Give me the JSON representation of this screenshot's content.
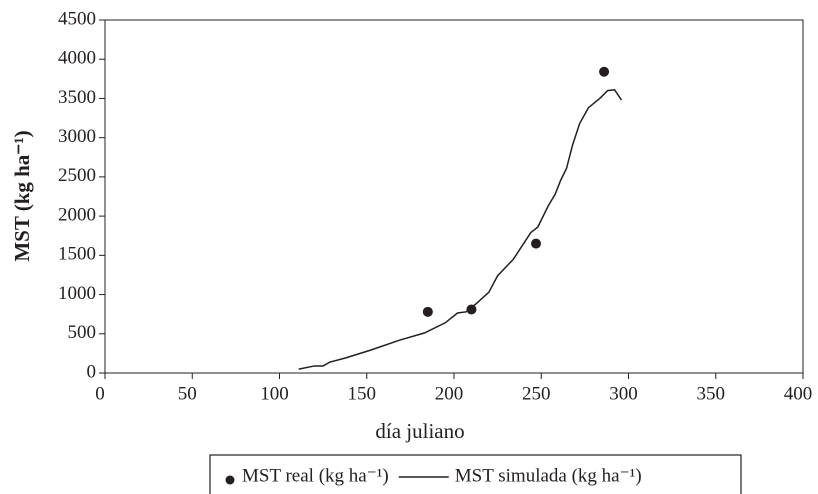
{
  "chart_data": {
    "type": "line",
    "x_label": "día juliano",
    "y_label": "MST (kg ha⁻¹)",
    "xlim": [
      0,
      400
    ],
    "xticks": [
      0,
      50,
      100,
      150,
      200,
      250,
      300,
      350,
      400
    ],
    "ylim": [
      0,
      4500
    ],
    "yticks": [
      0,
      500,
      1000,
      1500,
      2000,
      2500,
      3000,
      3500,
      4000,
      4500
    ],
    "legend": "bottom",
    "series": [
      {
        "name": "MST real (kg ha⁻¹)",
        "type": "scatter",
        "color": "#231f20",
        "x": [
          185,
          210,
          247,
          286
        ],
        "values": [
          780,
          810,
          1650,
          3840
        ]
      },
      {
        "name": "MST simulada (kg ha⁻¹)",
        "type": "line",
        "color": "#231f20",
        "x": [
          111,
          120,
          125,
          129,
          137.5,
          152,
          169,
          183,
          195,
          202,
          207,
          212,
          220,
          225,
          234,
          239,
          244,
          248,
          254,
          258,
          261,
          264.5,
          268,
          272,
          277,
          284,
          288,
          292,
          296
        ],
        "values": [
          50,
          90,
          90,
          140,
          190,
          290,
          420,
          510,
          640,
          765,
          780,
          870,
          1030,
          1240,
          1450,
          1620,
          1790,
          1860,
          2130,
          2280,
          2450,
          2610,
          2910,
          3180,
          3380,
          3510,
          3600,
          3610,
          3480
        ]
      }
    ]
  }
}
